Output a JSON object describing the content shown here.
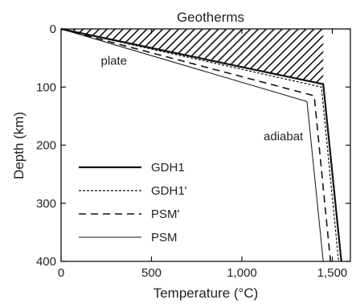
{
  "chart_data": {
    "type": "line",
    "title": "Geotherms",
    "xlabel": "Temperature (°C)",
    "ylabel": "Depth (km)",
    "xlim": [
      0,
      1600
    ],
    "ylim": [
      400,
      0
    ],
    "y_inverted": true,
    "x_ticks": [
      0,
      500,
      1000,
      1500
    ],
    "x_tick_labels": [
      "0",
      "500",
      "1,000",
      "1,500"
    ],
    "y_ticks": [
      0,
      100,
      200,
      300,
      400
    ],
    "y_tick_labels": [
      "0",
      "100",
      "200",
      "300",
      "400"
    ],
    "legend_placement": "bottom-left",
    "grid": false,
    "series": [
      {
        "name": "GDH1",
        "style": "solid-thick",
        "x": [
          0,
          1450,
          1550
        ],
        "y": [
          0,
          95,
          400
        ]
      },
      {
        "name": "GDH1'",
        "style": "dotted",
        "x": [
          0,
          1440,
          1535
        ],
        "y": [
          0,
          100,
          400
        ]
      },
      {
        "name": "PSM'",
        "style": "dashed",
        "x": [
          0,
          1400,
          1490
        ],
        "y": [
          0,
          115,
          400
        ]
      },
      {
        "name": "PSM",
        "style": "solid-thin",
        "x": [
          0,
          1360,
          1450
        ],
        "y": [
          0,
          125,
          400
        ]
      }
    ],
    "shaded_region": {
      "description": "hatched",
      "x": [
        0,
        1450,
        1450
      ],
      "y": [
        0,
        0,
        95
      ]
    },
    "annotations": [
      {
        "text": "plate",
        "x": 300,
        "y": 55
      },
      {
        "text": "adiabat",
        "x": 1200,
        "y": 185
      }
    ]
  }
}
